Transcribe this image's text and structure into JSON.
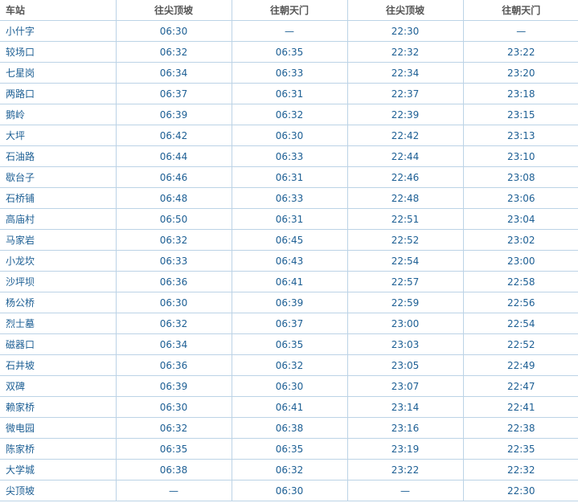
{
  "headers": [
    "车站",
    "往尖顶坡",
    "往朝天门",
    "往尖顶坡",
    "往朝天门"
  ],
  "rows": [
    [
      "小什字",
      "06:30",
      "—",
      "22:30",
      "—"
    ],
    [
      "较场口",
      "06:32",
      "06:35",
      "22:32",
      "23:22"
    ],
    [
      "七星岗",
      "06:34",
      "06:33",
      "22:34",
      "23:20"
    ],
    [
      "两路口",
      "06:37",
      "06:31",
      "22:37",
      "23:18"
    ],
    [
      "鹅岭",
      "06:39",
      "06:32",
      "22:39",
      "23:15"
    ],
    [
      "大坪",
      "06:42",
      "06:30",
      "22:42",
      "23:13"
    ],
    [
      "石油路",
      "06:44",
      "06:33",
      "22:44",
      "23:10"
    ],
    [
      "歇台子",
      "06:46",
      "06:31",
      "22:46",
      "23:08"
    ],
    [
      "石桥铺",
      "06:48",
      "06:33",
      "22:48",
      "23:06"
    ],
    [
      "高庙村",
      "06:50",
      "06:31",
      "22:51",
      "23:04"
    ],
    [
      "马家岩",
      "06:32",
      "06:45",
      "22:52",
      "23:02"
    ],
    [
      "小龙坎",
      "06:33",
      "06:43",
      "22:54",
      "23:00"
    ],
    [
      "沙坪坝",
      "06:36",
      "06:41",
      "22:57",
      "22:58"
    ],
    [
      "杨公桥",
      "06:30",
      "06:39",
      "22:59",
      "22:56"
    ],
    [
      "烈士墓",
      "06:32",
      "06:37",
      "23:00",
      "22:54"
    ],
    [
      "磁器口",
      "06:34",
      "06:35",
      "23:03",
      "22:52"
    ],
    [
      "石井坡",
      "06:36",
      "06:32",
      "23:05",
      "22:49"
    ],
    [
      "双碑",
      "06:39",
      "06:30",
      "23:07",
      "22:47"
    ],
    [
      "赖家桥",
      "06:30",
      "06:41",
      "23:14",
      "22:41"
    ],
    [
      "微电园",
      "06:32",
      "06:38",
      "23:16",
      "22:38"
    ],
    [
      "陈家桥",
      "06:35",
      "06:35",
      "23:19",
      "22:35"
    ],
    [
      "大学城",
      "06:38",
      "06:32",
      "23:22",
      "22:32"
    ],
    [
      "尖顶坡",
      "—",
      "06:30",
      "—",
      "22:30"
    ]
  ],
  "colors": {
    "header_text": "#555555",
    "cell_text": "#1d5f94",
    "border": "#bcd3e6"
  }
}
